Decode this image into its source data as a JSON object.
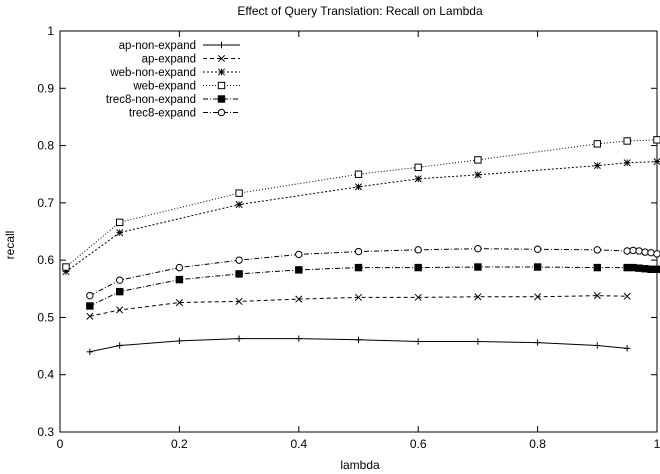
{
  "chart_data": {
    "type": "line",
    "title": "Effect of Query Translation: Recall on Lambda",
    "xlabel": "lambda",
    "ylabel": "recall",
    "xlim": [
      0,
      1
    ],
    "ylim": [
      0.3,
      1
    ],
    "xticks": [
      0,
      0.2,
      0.4,
      0.6,
      0.8,
      1
    ],
    "yticks": [
      0.3,
      0.4,
      0.5,
      0.6,
      0.7,
      0.8,
      0.9,
      1
    ],
    "xtick_labels": [
      "0",
      "0.2",
      "0.4",
      "0.6",
      "0.8",
      "1"
    ],
    "ytick_labels": [
      "0.3",
      "0.4",
      "0.5",
      "0.6",
      "0.7",
      "0.8",
      "0.9",
      "1"
    ],
    "grid": false,
    "legend_position": "top-left",
    "series": [
      {
        "name": "ap-non-expand",
        "marker": "plus",
        "dash": "solid",
        "x": [
          0.05,
          0.1,
          0.2,
          0.3,
          0.4,
          0.5,
          0.6,
          0.7,
          0.8,
          0.9,
          0.95
        ],
        "y": [
          0.44,
          0.451,
          0.459,
          0.463,
          0.463,
          0.461,
          0.458,
          0.458,
          0.456,
          0.451,
          0.446
        ]
      },
      {
        "name": "ap-expand",
        "marker": "x",
        "dash": "dashed",
        "x": [
          0.05,
          0.1,
          0.2,
          0.3,
          0.4,
          0.5,
          0.6,
          0.7,
          0.8,
          0.9,
          0.95
        ],
        "y": [
          0.502,
          0.513,
          0.526,
          0.528,
          0.532,
          0.535,
          0.535,
          0.536,
          0.536,
          0.538,
          0.537
        ]
      },
      {
        "name": "web-non-expand",
        "marker": "star",
        "dash": "dotted",
        "x": [
          0.01,
          0.1,
          0.3,
          0.5,
          0.6,
          0.7,
          0.9,
          0.95,
          1.0
        ],
        "y": [
          0.58,
          0.648,
          0.697,
          0.728,
          0.742,
          0.749,
          0.765,
          0.77,
          0.772
        ]
      },
      {
        "name": "web-expand",
        "marker": "square",
        "dash": "fine-dotted",
        "x": [
          0.01,
          0.1,
          0.3,
          0.5,
          0.6,
          0.7,
          0.9,
          0.95,
          1.0
        ],
        "y": [
          0.588,
          0.666,
          0.717,
          0.75,
          0.762,
          0.775,
          0.803,
          0.808,
          0.81
        ]
      },
      {
        "name": "trec8-non-expand",
        "marker": "filled-square",
        "dash": "dash-dot",
        "x": [
          0.05,
          0.1,
          0.2,
          0.3,
          0.4,
          0.5,
          0.6,
          0.7,
          0.8,
          0.9,
          0.95,
          0.96,
          0.97,
          0.98,
          0.99,
          1.0
        ],
        "y": [
          0.52,
          0.545,
          0.566,
          0.576,
          0.583,
          0.587,
          0.587,
          0.588,
          0.588,
          0.587,
          0.587,
          0.587,
          0.586,
          0.585,
          0.584,
          0.584
        ]
      },
      {
        "name": "trec8-expand",
        "marker": "circle",
        "dash": "dash-dot",
        "x": [
          0.05,
          0.1,
          0.2,
          0.3,
          0.4,
          0.5,
          0.6,
          0.7,
          0.8,
          0.9,
          0.95,
          0.96,
          0.97,
          0.98,
          0.99,
          1.0
        ],
        "y": [
          0.538,
          0.565,
          0.587,
          0.6,
          0.61,
          0.615,
          0.618,
          0.62,
          0.619,
          0.618,
          0.616,
          0.617,
          0.616,
          0.614,
          0.613,
          0.611
        ]
      }
    ]
  }
}
